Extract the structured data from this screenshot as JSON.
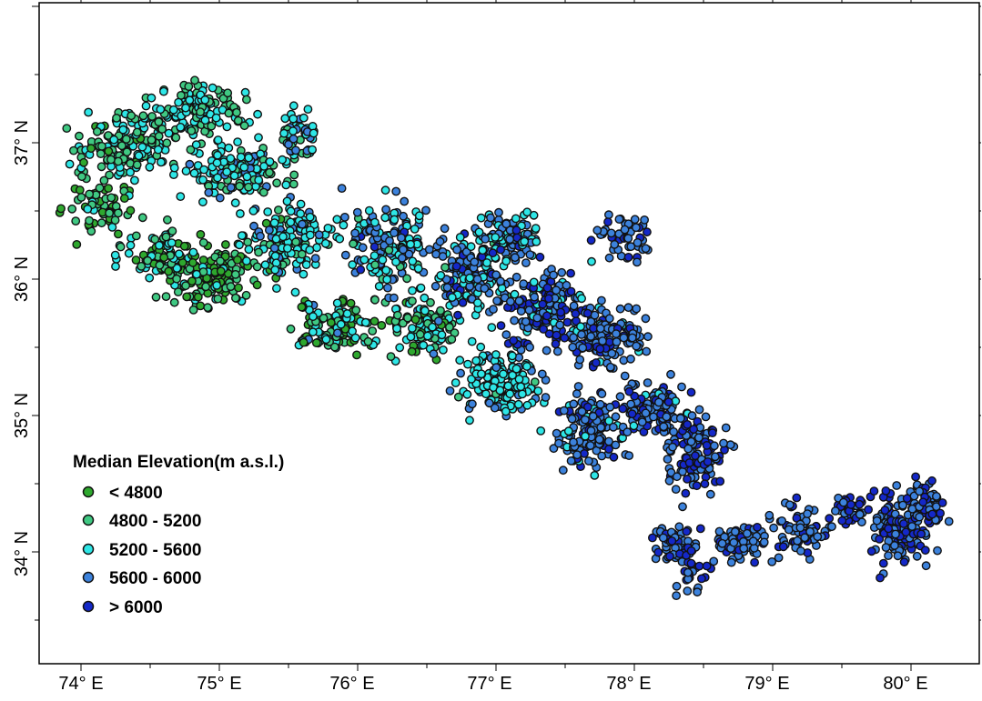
{
  "map": {
    "x_ticks": [
      "74° E",
      "75° E",
      "76° E",
      "77° E",
      "78° E",
      "79° E",
      "80° E"
    ],
    "y_ticks": [
      "37° N",
      "36° N",
      "35° N",
      "34° N"
    ],
    "lon_range": [
      73.7,
      80.5
    ],
    "lat_range": [
      33.3,
      37.9
    ],
    "legend": {
      "title": "Median Elevation(m a.s.l.)",
      "items": [
        {
          "label": "< 4800",
          "color": "#2ea82e"
        },
        {
          "label": "4800 - 5200",
          "color": "#3fc882"
        },
        {
          "label": "5200 - 5600",
          "color": "#2ee6e6"
        },
        {
          "label": "5600 - 6000",
          "color": "#3c82dc"
        },
        {
          "label": "> 6000",
          "color": "#1428c8"
        }
      ]
    }
  }
}
